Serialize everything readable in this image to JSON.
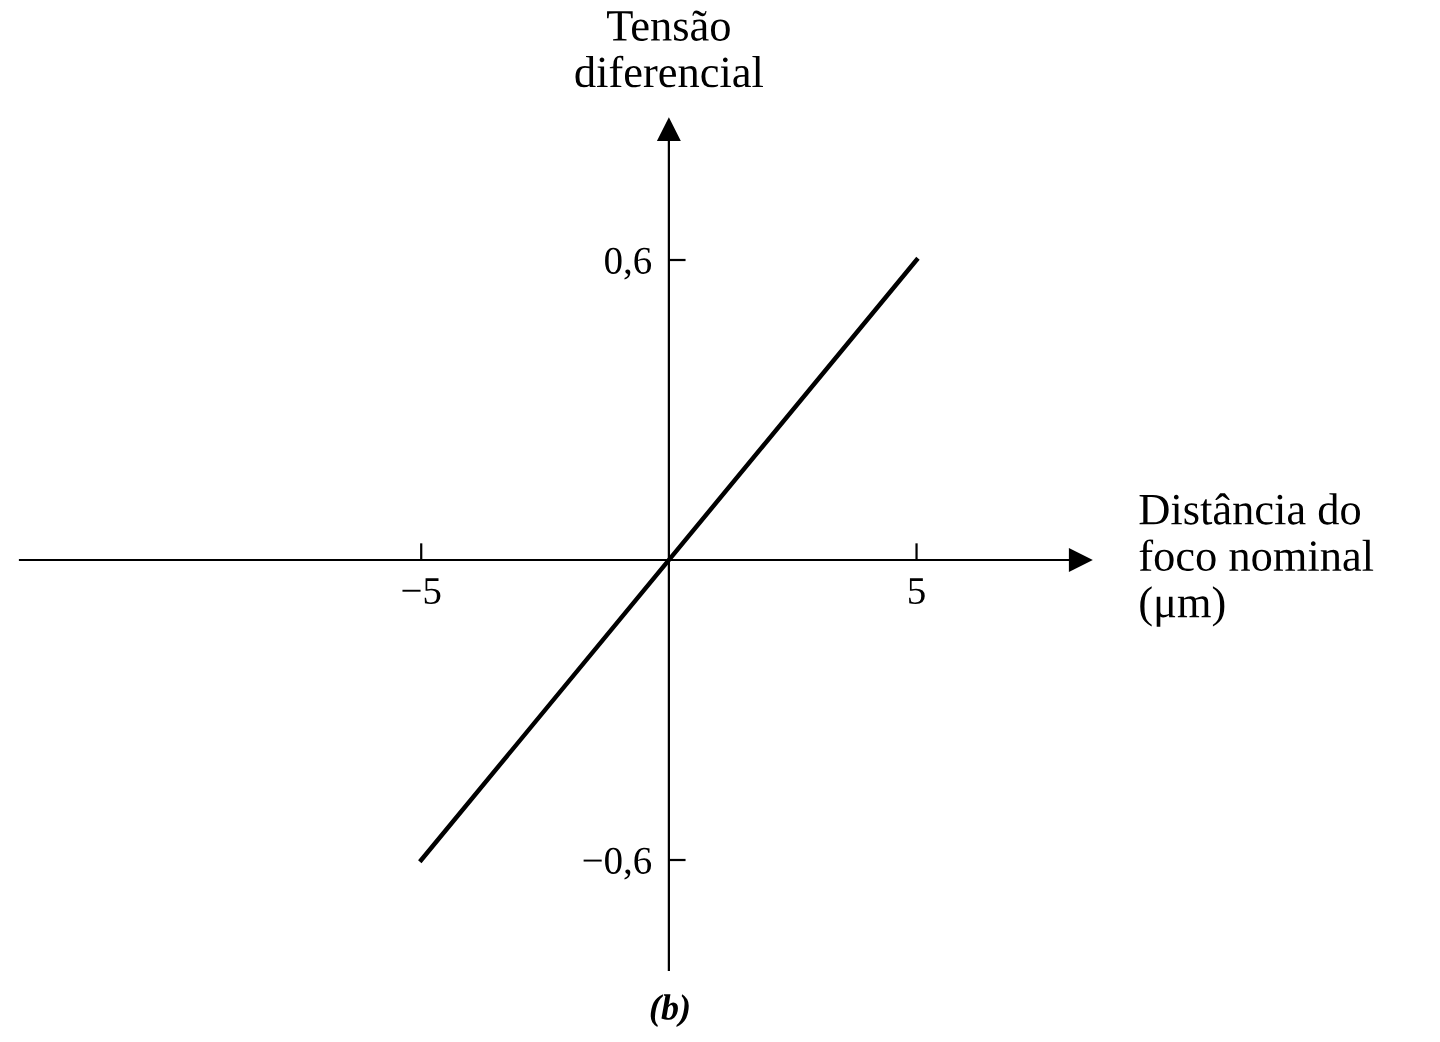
{
  "chart_data": {
    "type": "line",
    "x": [
      -5,
      5
    ],
    "values": [
      -0.6,
      0.6
    ],
    "color": "#000000",
    "xlabel": "Distância do\nfoco nominal\n(μm)",
    "ylabel": "Tensão\ndiferencial",
    "xlim": [
      -13.1,
      8.3
    ],
    "ylim": [
      -0.82,
      0.86
    ],
    "xticks": [
      {
        "value": -5,
        "label": "−5"
      },
      5
    ],
    "yticks": [
      {
        "value": 0.6,
        "label": "0,6"
      },
      {
        "value": -0.6,
        "label": "−0,6"
      }
    ],
    "annotations": [
      "(b)"
    ],
    "grid": false,
    "marker": "none",
    "line_style": "solid"
  }
}
